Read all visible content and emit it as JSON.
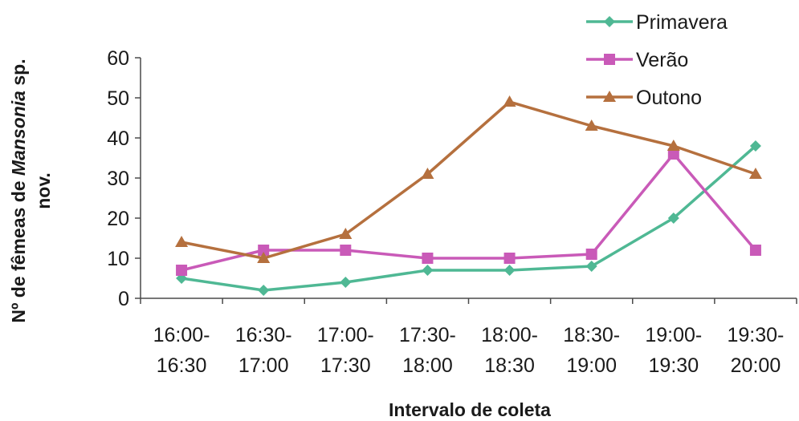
{
  "chart_data": {
    "type": "line",
    "title": "",
    "xlabel": "Intervalo de coleta",
    "ylabel_parts": [
      {
        "text": "Nº de fêmeas de ",
        "italic": false
      },
      {
        "text": "Mansonia",
        "italic": true
      },
      {
        "text": " sp.",
        "italic": false
      }
    ],
    "ylabel_line2": "nov.",
    "categories": [
      [
        "16:00-",
        "16:30"
      ],
      [
        "16:30-",
        "17:00"
      ],
      [
        "17:00-",
        "17:30"
      ],
      [
        "17:30-",
        "18:00"
      ],
      [
        "18:00-",
        "18:30"
      ],
      [
        "18:30-",
        "19:00"
      ],
      [
        "19:00-",
        "19:30"
      ],
      [
        "19:30-",
        "20:00"
      ]
    ],
    "ylim": [
      0,
      60
    ],
    "yticks": [
      0,
      10,
      20,
      30,
      40,
      50,
      60
    ],
    "grid": false,
    "legend_position": "top-right",
    "series": [
      {
        "name": "Primavera",
        "color": "#4fb894",
        "marker": "diamond",
        "values": [
          5,
          2,
          4,
          7,
          7,
          8,
          20,
          38
        ]
      },
      {
        "name": "Verão",
        "color": "#c95ab8",
        "marker": "square",
        "values": [
          7,
          12,
          12,
          10,
          10,
          11,
          36,
          12
        ]
      },
      {
        "name": "Outono",
        "color": "#b5703e",
        "marker": "triangle",
        "values": [
          14,
          10,
          16,
          31,
          49,
          43,
          38,
          31
        ]
      }
    ]
  }
}
